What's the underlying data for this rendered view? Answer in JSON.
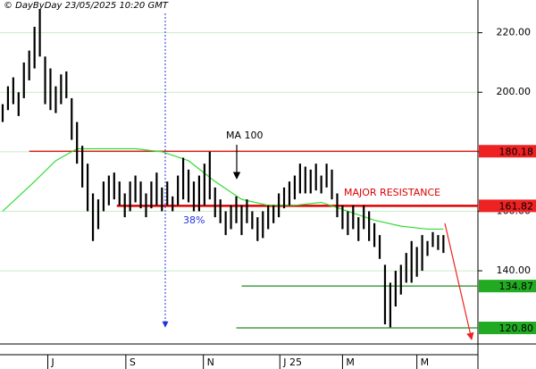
{
  "header": "© DayByDay 23/05/2025 10:20 GMT",
  "chart_data": {
    "type": "ohlc",
    "xlim": [
      -0.5,
      89.5
    ],
    "xticks": [
      {
        "value": 8.5,
        "label": "J"
      },
      {
        "value": 23.2,
        "label": "S"
      },
      {
        "value": 37.8,
        "label": "N"
      },
      {
        "value": 52.2,
        "label": "J 25"
      },
      {
        "value": 64,
        "label": "M"
      },
      {
        "value": 78,
        "label": "M"
      }
    ],
    "ylim": [
      115.4,
      231
    ],
    "yticks": [
      {
        "value": 140,
        "label": "140.00"
      },
      {
        "value": 160,
        "label": "160.00"
      },
      {
        "value": 180,
        "label": "180.00"
      },
      {
        "value": 200,
        "label": "200.00"
      },
      {
        "value": 220,
        "label": "220.00"
      }
    ],
    "grid": true,
    "bar_color": "#000000",
    "high": [
      196,
      202,
      205,
      200,
      210,
      214,
      222,
      228,
      212,
      208,
      202,
      206,
      207,
      198,
      190,
      182,
      176,
      166,
      164,
      170,
      172,
      173,
      170,
      166,
      170,
      172,
      170,
      166,
      170,
      173,
      168,
      170,
      165,
      172,
      178,
      174,
      170,
      172,
      176,
      180,
      168,
      164,
      160,
      162,
      165,
      162,
      164,
      160,
      158,
      160,
      162,
      162,
      166,
      168,
      170,
      172,
      176,
      175,
      174,
      176,
      172,
      176,
      174,
      166,
      162,
      160,
      162,
      158,
      162,
      160,
      156,
      152,
      142,
      136,
      140,
      142,
      146,
      150,
      148,
      152,
      150,
      153,
      152,
      152
    ],
    "low": [
      190,
      194,
      196,
      192,
      198,
      204,
      208,
      212,
      196,
      194,
      193,
      196,
      198,
      184,
      176,
      168,
      160,
      150,
      154,
      160,
      162,
      164,
      162,
      158,
      160,
      163,
      161,
      158,
      161,
      162,
      160,
      162,
      160,
      162,
      164,
      163,
      160,
      160,
      162,
      164,
      158,
      156,
      152,
      154,
      156,
      152,
      156,
      154,
      150,
      151,
      154,
      156,
      158,
      161,
      162,
      164,
      166,
      166,
      166,
      167,
      166,
      168,
      164,
      158,
      154,
      152,
      154,
      150,
      154,
      150,
      148,
      144,
      122,
      121,
      128,
      132,
      136,
      136,
      138,
      140,
      145,
      148,
      147,
      146
    ],
    "ma": {
      "color": "#33dd33",
      "x": [
        0,
        3,
        6,
        10,
        14,
        20,
        25,
        30,
        35,
        40,
        45,
        50,
        55,
        60,
        65,
        70,
        75,
        80,
        83
      ],
      "values": [
        160,
        165,
        170,
        177,
        181,
        181,
        181,
        180,
        177,
        170,
        164,
        162,
        162,
        163,
        160,
        157,
        155,
        154,
        154
      ]
    },
    "levels": [
      {
        "value": 180.18,
        "label": "180.18",
        "color": "#dd0000",
        "box": "#ee2222",
        "from": 5
      },
      {
        "value": 161.82,
        "label": "161.82",
        "color": "#dd0000",
        "box": "#ee2222",
        "from": 21.5
      },
      {
        "value": 134.87,
        "label": "134.87",
        "color": "#228822",
        "box": "#22aa22",
        "from": 45
      },
      {
        "value": 120.8,
        "label": "120.80",
        "color": "#228822",
        "box": "#22aa22",
        "from": 44
      }
    ],
    "annotations": {
      "ma": "MA 100",
      "fib": "38%",
      "resistance": "MAJOR RESISTANCE"
    }
  }
}
